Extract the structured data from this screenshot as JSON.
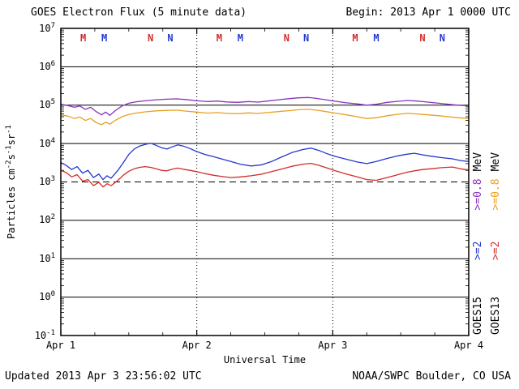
{
  "header": {
    "title": "GOES Electron Flux (5 minute data)",
    "begin": "Begin: 2013 Apr 1 0000 UTC"
  },
  "footer": {
    "updated": "Updated 2013 Apr 3 23:56:02 UTC",
    "credit": "NOAA/SWPC Boulder, CO USA"
  },
  "legend": {
    "columns": [
      {
        "satellite": "GOES15",
        "segments": [
          {
            "text": "GOES15",
            "color": "#000000"
          },
          {
            "text": ">=2",
            "color": "#2438cc"
          },
          {
            "text": ">=0.8",
            "color": "#8833bb"
          },
          {
            "text": "MeV",
            "color": "#000000"
          }
        ]
      },
      {
        "satellite": "GOES13",
        "segments": [
          {
            "text": "GOES13",
            "color": "#000000"
          },
          {
            "text": ">=2",
            "color": "#d22b2b"
          },
          {
            "text": ">=0.8",
            "color": "#e8a020"
          },
          {
            "text": "MeV",
            "color": "#000000"
          }
        ]
      }
    ]
  },
  "chart_data": {
    "type": "line",
    "title": "GOES Electron Flux (5 minute data)",
    "xlabel": "Universal Time",
    "ylabel": "Particles cm-2 s-1 sr-1",
    "ylabel_parts": [
      {
        "t": "Particles cm"
      },
      {
        "t": "-2",
        "sup": true
      },
      {
        "t": "s"
      },
      {
        "t": "-1",
        "sup": true
      },
      {
        "t": "sr"
      },
      {
        "t": "-1",
        "sup": true
      }
    ],
    "x_ticks": [
      "Apr 1",
      "Apr 2",
      "Apr 3",
      "Apr 4"
    ],
    "x_range_days": [
      0,
      3
    ],
    "y_axis": {
      "scale": "log10",
      "min_exponent": -1,
      "max_exponent": 7
    },
    "grid": {
      "horizontal_decades": true,
      "vertical_day_boundaries": "dotted",
      "threshold_dashed_at": 1000
    },
    "markers": [
      {
        "label": "M",
        "day": 0.165,
        "color": "#d22b2b"
      },
      {
        "label": "M",
        "day": 0.32,
        "color": "#2438cc"
      },
      {
        "label": "N",
        "day": 0.66,
        "color": "#d22b2b"
      },
      {
        "label": "N",
        "day": 0.805,
        "color": "#2438cc"
      },
      {
        "label": "M",
        "day": 1.165,
        "color": "#d22b2b"
      },
      {
        "label": "M",
        "day": 1.32,
        "color": "#2438cc"
      },
      {
        "label": "N",
        "day": 1.66,
        "color": "#d22b2b"
      },
      {
        "label": "N",
        "day": 1.805,
        "color": "#2438cc"
      },
      {
        "label": "M",
        "day": 2.165,
        "color": "#d22b2b"
      },
      {
        "label": "M",
        "day": 2.32,
        "color": "#2438cc"
      },
      {
        "label": "N",
        "day": 2.66,
        "color": "#d22b2b"
      },
      {
        "label": "N",
        "day": 2.805,
        "color": "#2438cc"
      }
    ],
    "series": [
      {
        "id": "goes15-08mev",
        "name": "GOES15 >=0.8 MeV",
        "satellite": "GOES15",
        "energy": ">=0.8 MeV",
        "color": "#8833bb",
        "points": [
          [
            0.0,
            105000
          ],
          [
            0.05,
            98000
          ],
          [
            0.1,
            88000
          ],
          [
            0.14,
            95000
          ],
          [
            0.18,
            78000
          ],
          [
            0.22,
            88000
          ],
          [
            0.26,
            68000
          ],
          [
            0.3,
            56000
          ],
          [
            0.33,
            66000
          ],
          [
            0.36,
            54000
          ],
          [
            0.4,
            72000
          ],
          [
            0.45,
            95000
          ],
          [
            0.5,
            112000
          ],
          [
            0.55,
            122000
          ],
          [
            0.62,
            130000
          ],
          [
            0.7,
            138000
          ],
          [
            0.78,
            143000
          ],
          [
            0.85,
            146000
          ],
          [
            0.92,
            140000
          ],
          [
            1.0,
            130000
          ],
          [
            1.08,
            124000
          ],
          [
            1.15,
            128000
          ],
          [
            1.22,
            121000
          ],
          [
            1.3,
            118000
          ],
          [
            1.38,
            124000
          ],
          [
            1.45,
            120000
          ],
          [
            1.52,
            128000
          ],
          [
            1.6,
            138000
          ],
          [
            1.68,
            148000
          ],
          [
            1.75,
            155000
          ],
          [
            1.82,
            158000
          ],
          [
            1.88,
            150000
          ],
          [
            1.95,
            138000
          ],
          [
            2.02,
            126000
          ],
          [
            2.1,
            115000
          ],
          [
            2.18,
            108000
          ],
          [
            2.25,
            100000
          ],
          [
            2.32,
            106000
          ],
          [
            2.4,
            118000
          ],
          [
            2.48,
            126000
          ],
          [
            2.55,
            132000
          ],
          [
            2.62,
            128000
          ],
          [
            2.7,
            120000
          ],
          [
            2.78,
            112000
          ],
          [
            2.85,
            106000
          ],
          [
            2.92,
            100000
          ],
          [
            3.0,
            96000
          ]
        ]
      },
      {
        "id": "goes13-08mev",
        "name": "GOES13 >=0.8 MeV",
        "satellite": "GOES13",
        "energy": ">=0.8 MeV",
        "color": "#e8a020",
        "points": [
          [
            0.0,
            56000
          ],
          [
            0.05,
            52000
          ],
          [
            0.1,
            45000
          ],
          [
            0.14,
            49000
          ],
          [
            0.18,
            40000
          ],
          [
            0.22,
            45000
          ],
          [
            0.26,
            35000
          ],
          [
            0.3,
            31000
          ],
          [
            0.33,
            36000
          ],
          [
            0.36,
            32000
          ],
          [
            0.4,
            40000
          ],
          [
            0.45,
            50000
          ],
          [
            0.5,
            57000
          ],
          [
            0.55,
            62000
          ],
          [
            0.62,
            67000
          ],
          [
            0.7,
            71000
          ],
          [
            0.78,
            73000
          ],
          [
            0.85,
            74000
          ],
          [
            0.92,
            70000
          ],
          [
            1.0,
            66000
          ],
          [
            1.08,
            62000
          ],
          [
            1.15,
            64000
          ],
          [
            1.22,
            61000
          ],
          [
            1.3,
            60000
          ],
          [
            1.38,
            63000
          ],
          [
            1.45,
            61000
          ],
          [
            1.52,
            64000
          ],
          [
            1.6,
            68000
          ],
          [
            1.68,
            72000
          ],
          [
            1.75,
            76000
          ],
          [
            1.82,
            78000
          ],
          [
            1.88,
            74000
          ],
          [
            1.95,
            68000
          ],
          [
            2.02,
            62000
          ],
          [
            2.1,
            56000
          ],
          [
            2.18,
            50000
          ],
          [
            2.25,
            45000
          ],
          [
            2.32,
            47000
          ],
          [
            2.4,
            53000
          ],
          [
            2.48,
            58000
          ],
          [
            2.55,
            61000
          ],
          [
            2.62,
            59000
          ],
          [
            2.7,
            56000
          ],
          [
            2.78,
            53000
          ],
          [
            2.85,
            50000
          ],
          [
            2.92,
            47000
          ],
          [
            3.0,
            45000
          ]
        ]
      },
      {
        "id": "goes15-2mev",
        "name": "GOES15 >=2 MeV",
        "satellite": "GOES15",
        "energy": ">=2 MeV",
        "color": "#2438cc",
        "points": [
          [
            0.0,
            3200
          ],
          [
            0.04,
            2700
          ],
          [
            0.08,
            2100
          ],
          [
            0.12,
            2500
          ],
          [
            0.16,
            1700
          ],
          [
            0.2,
            2000
          ],
          [
            0.24,
            1300
          ],
          [
            0.28,
            1600
          ],
          [
            0.31,
            1150
          ],
          [
            0.34,
            1450
          ],
          [
            0.37,
            1250
          ],
          [
            0.42,
            2000
          ],
          [
            0.46,
            3200
          ],
          [
            0.5,
            5200
          ],
          [
            0.54,
            7200
          ],
          [
            0.58,
            8600
          ],
          [
            0.62,
            9500
          ],
          [
            0.66,
            10200
          ],
          [
            0.7,
            9000
          ],
          [
            0.74,
            7800
          ],
          [
            0.78,
            7200
          ],
          [
            0.82,
            8200
          ],
          [
            0.86,
            9200
          ],
          [
            0.9,
            8600
          ],
          [
            0.95,
            7400
          ],
          [
            1.0,
            6200
          ],
          [
            1.06,
            5200
          ],
          [
            1.12,
            4600
          ],
          [
            1.18,
            4000
          ],
          [
            1.25,
            3400
          ],
          [
            1.32,
            2900
          ],
          [
            1.4,
            2600
          ],
          [
            1.48,
            2800
          ],
          [
            1.55,
            3400
          ],
          [
            1.62,
            4400
          ],
          [
            1.7,
            5800
          ],
          [
            1.78,
            7000
          ],
          [
            1.84,
            7600
          ],
          [
            1.9,
            6600
          ],
          [
            1.96,
            5400
          ],
          [
            2.02,
            4600
          ],
          [
            2.1,
            3900
          ],
          [
            2.18,
            3300
          ],
          [
            2.25,
            3000
          ],
          [
            2.32,
            3400
          ],
          [
            2.4,
            4100
          ],
          [
            2.48,
            4800
          ],
          [
            2.55,
            5300
          ],
          [
            2.6,
            5600
          ],
          [
            2.66,
            5100
          ],
          [
            2.72,
            4700
          ],
          [
            2.8,
            4300
          ],
          [
            2.88,
            4000
          ],
          [
            2.94,
            3600
          ],
          [
            3.0,
            3400
          ]
        ]
      },
      {
        "id": "goes13-2mev",
        "name": "GOES13 >=2 MeV",
        "satellite": "GOES13",
        "energy": ">=2 MeV",
        "color": "#d22b2b",
        "points": [
          [
            0.0,
            2000
          ],
          [
            0.04,
            1750
          ],
          [
            0.08,
            1350
          ],
          [
            0.12,
            1550
          ],
          [
            0.16,
            1050
          ],
          [
            0.2,
            1150
          ],
          [
            0.24,
            800
          ],
          [
            0.28,
            980
          ],
          [
            0.31,
            740
          ],
          [
            0.34,
            900
          ],
          [
            0.37,
            800
          ],
          [
            0.42,
            1100
          ],
          [
            0.46,
            1500
          ],
          [
            0.5,
            1900
          ],
          [
            0.54,
            2200
          ],
          [
            0.58,
            2400
          ],
          [
            0.62,
            2500
          ],
          [
            0.66,
            2400
          ],
          [
            0.7,
            2200
          ],
          [
            0.74,
            2000
          ],
          [
            0.78,
            1950
          ],
          [
            0.82,
            2150
          ],
          [
            0.86,
            2300
          ],
          [
            0.9,
            2150
          ],
          [
            0.95,
            2000
          ],
          [
            1.0,
            1850
          ],
          [
            1.06,
            1650
          ],
          [
            1.12,
            1500
          ],
          [
            1.18,
            1400
          ],
          [
            1.25,
            1300
          ],
          [
            1.32,
            1350
          ],
          [
            1.4,
            1450
          ],
          [
            1.48,
            1600
          ],
          [
            1.55,
            1850
          ],
          [
            1.62,
            2150
          ],
          [
            1.7,
            2550
          ],
          [
            1.78,
            2900
          ],
          [
            1.84,
            3050
          ],
          [
            1.9,
            2700
          ],
          [
            1.96,
            2300
          ],
          [
            2.02,
            1950
          ],
          [
            2.1,
            1600
          ],
          [
            2.18,
            1350
          ],
          [
            2.25,
            1150
          ],
          [
            2.32,
            1100
          ],
          [
            2.4,
            1300
          ],
          [
            2.48,
            1550
          ],
          [
            2.55,
            1800
          ],
          [
            2.6,
            1950
          ],
          [
            2.66,
            2100
          ],
          [
            2.72,
            2200
          ],
          [
            2.8,
            2350
          ],
          [
            2.88,
            2450
          ],
          [
            2.94,
            2200
          ],
          [
            3.0,
            2050
          ]
        ]
      }
    ]
  }
}
